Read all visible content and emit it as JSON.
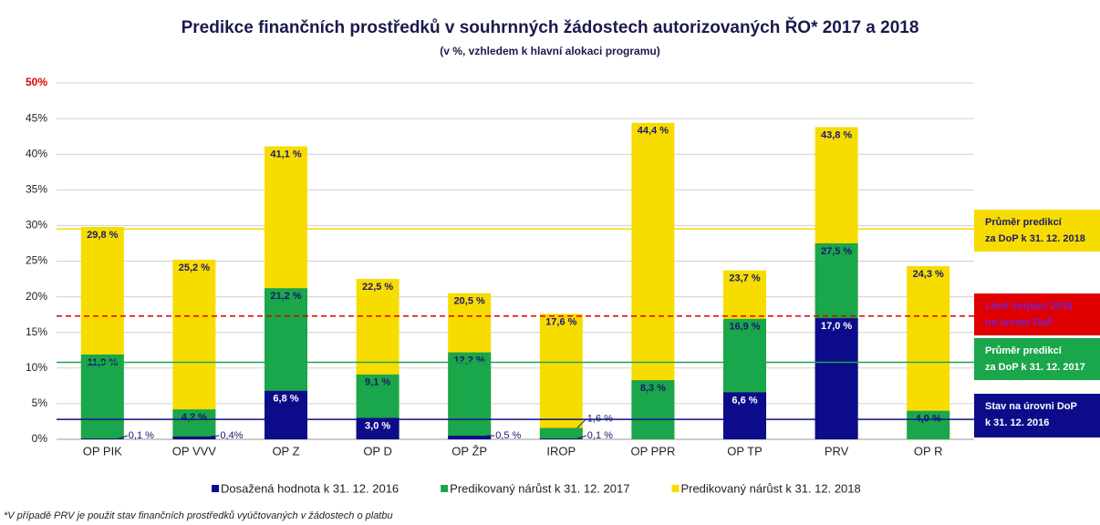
{
  "chart_data": {
    "type": "bar",
    "overlap": true,
    "title": "Predikce finančních prostředků v souhrnných žádostech autorizovaných ŘO* 2017 a 2018",
    "subtitle": "(v %, vzhledem k hlavní alokaci programu)",
    "footnote": "*V případě PRV je použit stav finančních prostředků vyúčtovaných v žádostech o platbu",
    "categories": [
      "OP PIK",
      "OP VVV",
      "OP Z",
      "OP D",
      "OP ŽP",
      "IROP",
      "OP PPR",
      "OP TP",
      "PRV",
      "OP R"
    ],
    "series": [
      {
        "name": "Predikovaný nárůst k 31. 12. 2018",
        "color": "#f7dc00",
        "values": [
          29.8,
          25.2,
          41.1,
          22.5,
          20.5,
          17.6,
          44.4,
          23.7,
          43.8,
          24.3
        ],
        "value_labels": [
          "29,8 %",
          "25,2 %",
          "41,1 %",
          "22,5 %",
          "20,5 %",
          "17,6 %",
          "44,4 %",
          "23,7 %",
          "43,8 %",
          "24,3 %"
        ]
      },
      {
        "name": "Predikovaný nárůst k 31. 12. 2017",
        "color": "#1aa64a",
        "values": [
          11.9,
          4.2,
          21.2,
          9.1,
          12.2,
          1.6,
          8.3,
          16.9,
          27.5,
          4.0
        ],
        "value_labels": [
          "11,9 %",
          "4,2 %",
          "21,2 %",
          "9,1 %",
          "12,2 %",
          "1,6 %",
          "8,3 %",
          "16,9 %",
          "27,5 %",
          "4,0 %"
        ]
      },
      {
        "name": "Dosažená hodnota k 31. 12. 2016",
        "color": "#0c0c8a",
        "values": [
          0.1,
          0.4,
          6.8,
          3.0,
          0.5,
          0.1,
          null,
          6.6,
          17.0,
          null
        ],
        "value_labels": [
          "0,1 %",
          "0,4%",
          "6,8 %",
          "3,0 %",
          "0,5 %",
          "0,1 %",
          null,
          "6,6 %",
          "17,0 %",
          null
        ]
      }
    ],
    "legend_order": [
      2,
      1,
      0
    ],
    "ylim": [
      0,
      50
    ],
    "yticks": [
      {
        "value": 0,
        "label": "0%"
      },
      {
        "value": 5,
        "label": "5%"
      },
      {
        "value": 10,
        "label": "10%"
      },
      {
        "value": 15,
        "label": "15%"
      },
      {
        "value": 20,
        "label": "20%"
      },
      {
        "value": 25,
        "label": "25%"
      },
      {
        "value": 30,
        "label": "30%"
      },
      {
        "value": 35,
        "label": "35%"
      },
      {
        "value": 40,
        "label": "40%"
      },
      {
        "value": 45,
        "label": "45%"
      },
      {
        "value": 50,
        "label": "50%"
      }
    ],
    "top_tick_color": "#e00000",
    "grid": true,
    "reference_lines": [
      {
        "value": 29.5,
        "color": "#f7dc00",
        "dashed": false,
        "label": [
          "Průměr predikcí",
          "za DoP k 31. 12. 2018"
        ],
        "text_color": "#1a1a6e"
      },
      {
        "value": 17.3,
        "color": "#e00000",
        "dashed": true,
        "label": [
          "Limit čerpání 2018",
          "na úrovni DoP"
        ],
        "text_color": "#7a1fd0"
      },
      {
        "value": 10.8,
        "color": "#1aa64a",
        "dashed": false,
        "label": [
          "Průměr predikcí",
          "za DoP k 31. 12. 2017"
        ],
        "text_color": "#ffffff"
      },
      {
        "value": 2.8,
        "color": "#0c0c8a",
        "dashed": false,
        "label": [
          "Stav na úrovni DoP",
          "k 31. 12. 2016"
        ],
        "text_color": "#ffffff"
      }
    ]
  }
}
